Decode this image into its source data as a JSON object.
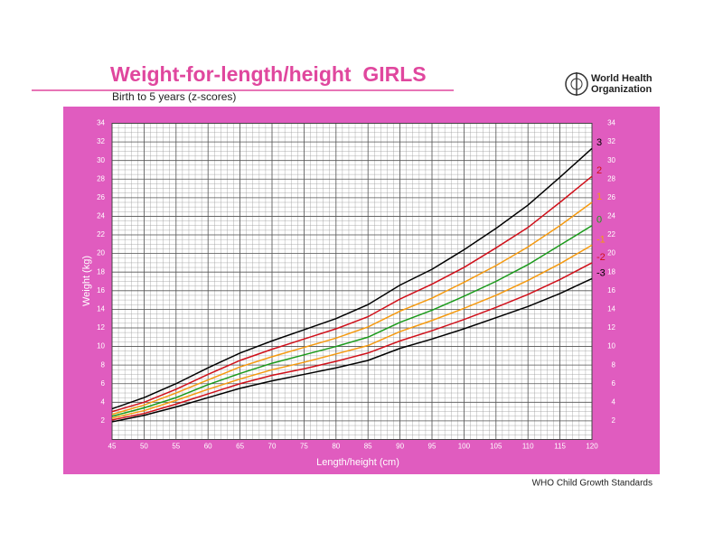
{
  "organization": [
    "World Health",
    "Organization"
  ],
  "footer": "WHO Child Growth Standards",
  "chart_data": {
    "type": "line",
    "title": "Weight-for-length/height  GIRLS",
    "subtitle": "Birth to 5 years (z-scores)",
    "x_label": "Length/height (cm)",
    "y_label": "Weight (kg)",
    "x": [
      45,
      50,
      55,
      60,
      65,
      70,
      75,
      80,
      85,
      90,
      95,
      100,
      105,
      110,
      115,
      120
    ],
    "xlim": [
      45,
      120
    ],
    "xticks": [
      45,
      50,
      55,
      60,
      65,
      70,
      75,
      80,
      85,
      90,
      95,
      100,
      105,
      110,
      115,
      120
    ],
    "ylim": [
      0,
      34
    ],
    "yticks": [
      2,
      4,
      6,
      8,
      10,
      12,
      14,
      16,
      18,
      20,
      22,
      24,
      26,
      28,
      30,
      32,
      34
    ],
    "grid": true,
    "minor_grid": true,
    "series": [
      {
        "name": "3",
        "color": "#000000",
        "values": [
          3.3,
          4.5,
          6.0,
          7.7,
          9.3,
          10.6,
          11.8,
          13.0,
          14.5,
          16.6,
          18.3,
          20.4,
          22.7,
          25.2,
          28.2,
          31.3
        ]
      },
      {
        "name": "2",
        "color": "#d0101a",
        "values": [
          3.0,
          4.0,
          5.4,
          7.0,
          8.5,
          9.7,
          10.8,
          11.9,
          13.2,
          15.1,
          16.7,
          18.5,
          20.6,
          22.8,
          25.5,
          28.3
        ]
      },
      {
        "name": "1",
        "color": "#f59a10",
        "values": [
          2.7,
          3.7,
          5.0,
          6.4,
          7.8,
          8.9,
          9.9,
          10.9,
          12.1,
          13.8,
          15.2,
          16.9,
          18.7,
          20.7,
          23.0,
          25.5
        ]
      },
      {
        "name": "0",
        "color": "#1a9a1a",
        "values": [
          2.5,
          3.4,
          4.5,
          5.9,
          7.1,
          8.2,
          9.1,
          10.0,
          11.0,
          12.6,
          13.9,
          15.4,
          17.0,
          18.8,
          20.9,
          23.0
        ]
      },
      {
        "name": "-1",
        "color": "#f59a10",
        "values": [
          2.3,
          3.1,
          4.2,
          5.4,
          6.5,
          7.5,
          8.3,
          9.2,
          10.1,
          11.6,
          12.8,
          14.1,
          15.5,
          17.1,
          18.9,
          20.9
        ]
      },
      {
        "name": "-2",
        "color": "#d0101a",
        "values": [
          2.1,
          2.8,
          3.8,
          4.9,
          6.0,
          6.9,
          7.6,
          8.4,
          9.3,
          10.6,
          11.7,
          12.9,
          14.2,
          15.6,
          17.2,
          19.0
        ]
      },
      {
        "name": "-3",
        "color": "#000000",
        "values": [
          1.9,
          2.6,
          3.5,
          4.5,
          5.5,
          6.3,
          7.0,
          7.7,
          8.5,
          9.8,
          10.8,
          11.9,
          13.1,
          14.3,
          15.7,
          17.3
        ]
      }
    ]
  }
}
